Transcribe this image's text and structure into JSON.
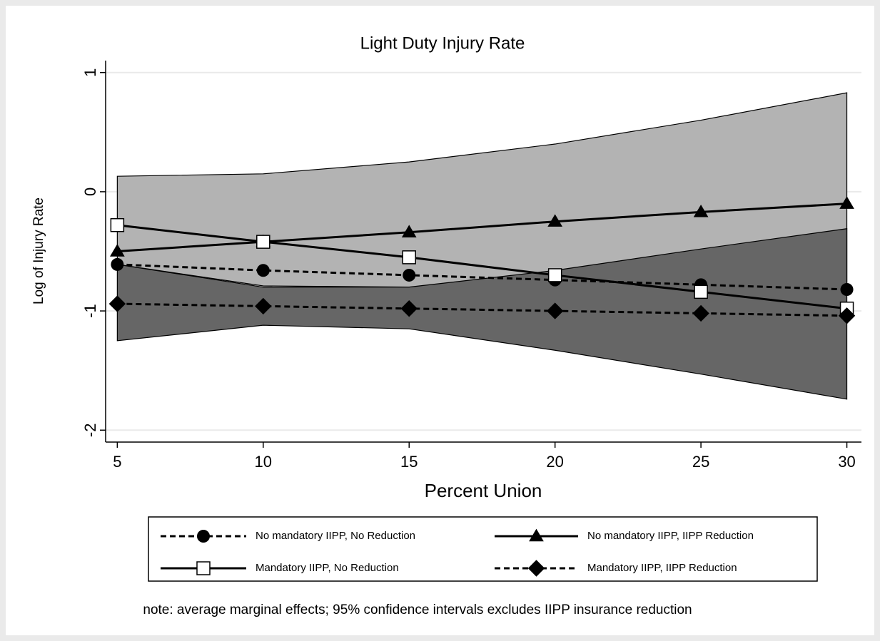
{
  "chart_data": {
    "type": "line",
    "title": "Light Duty Injury Rate",
    "xlabel": "Percent Union",
    "ylabel": "Log of Injury Rate",
    "note": "note: average marginal effects; 95% confidence intervals excludes IIPP insurance reduction",
    "x": [
      5,
      10,
      15,
      20,
      25,
      30
    ],
    "xlim": [
      4.6,
      30.5
    ],
    "xticks": [
      5,
      10,
      15,
      20,
      25,
      30
    ],
    "ylim": [
      -2.1,
      1.1
    ],
    "yticks": [
      -2,
      -1,
      0,
      1
    ],
    "grid": true,
    "bands": [
      {
        "color": "#b3b3b3",
        "upper": [
          0.13,
          0.15,
          0.25,
          0.4,
          0.6,
          0.83
        ],
        "lower": [
          -0.61,
          -0.79,
          -0.8,
          -0.8,
          -0.8,
          -0.8
        ]
      },
      {
        "color": "#666666",
        "upper": [
          -0.61,
          -0.8,
          -0.8,
          -0.66,
          -0.48,
          -0.31
        ],
        "lower": [
          -1.25,
          -1.12,
          -1.15,
          -1.33,
          -1.53,
          -1.74
        ]
      }
    ],
    "series": [
      {
        "name": "No mandatory IIPP, No Reduction",
        "color": "#000000",
        "marker": "circle",
        "dashed": true,
        "values": [
          -0.61,
          -0.66,
          -0.7,
          -0.74,
          -0.78,
          -0.82
        ]
      },
      {
        "name": "No mandatory IIPP, IIPP Reduction",
        "color": "#000000",
        "marker": "triangle",
        "dashed": false,
        "values": [
          -0.5,
          -0.42,
          -0.34,
          -0.25,
          -0.17,
          -0.1
        ]
      },
      {
        "name": "Mandatory IIPP, No Reduction",
        "color": "#000000",
        "marker": "square",
        "dashed": false,
        "values": [
          -0.28,
          -0.42,
          -0.55,
          -0.7,
          -0.84,
          -0.98
        ]
      },
      {
        "name": "Mandatory IIPP, IIPP Reduction",
        "color": "#000000",
        "marker": "diamond",
        "dashed": true,
        "values": [
          -0.94,
          -0.96,
          -0.98,
          -1.0,
          -1.02,
          -1.04
        ]
      }
    ]
  }
}
